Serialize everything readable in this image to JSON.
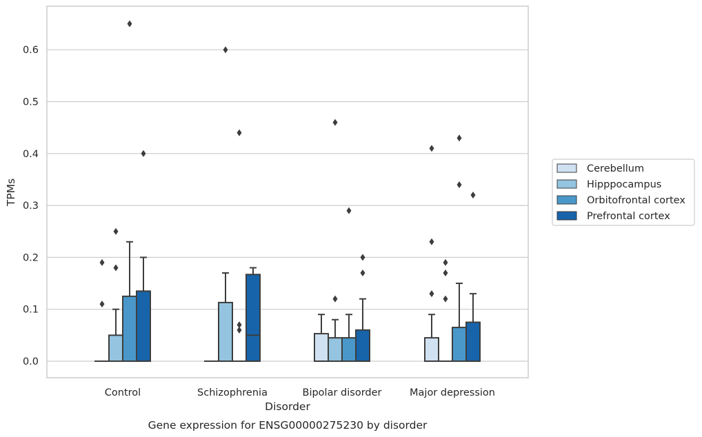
{
  "chart_data": {
    "type": "box",
    "xlabel": "Disorder",
    "ylabel": "TPMs",
    "caption": "Gene expression for ENSG00000275230 by disorder",
    "ylim": [
      -0.033,
      0.683
    ],
    "yticks": [
      "0.0",
      "0.1",
      "0.2",
      "0.3",
      "0.4",
      "0.5",
      "0.6"
    ],
    "grid": "horizontal",
    "legend_position": "right",
    "categories": [
      "Control",
      "Schizophrenia",
      "Bipolar disorder",
      "Major depression"
    ],
    "series": [
      {
        "name": "Cerebellum",
        "color": "#d0e1f2",
        "boxes": [
          {
            "q1": 0.0,
            "median": 0.0,
            "q3": 0.0,
            "whisker_low": 0.0,
            "whisker_high": 0.0,
            "outliers": [
              0.11,
              0.19
            ]
          },
          {
            "q1": 0.0,
            "median": 0.0,
            "q3": 0.0,
            "whisker_low": 0.0,
            "whisker_high": 0.0,
            "outliers": []
          },
          {
            "q1": 0.0,
            "median": 0.0,
            "q3": 0.053,
            "whisker_low": 0.0,
            "whisker_high": 0.09,
            "outliers": []
          },
          {
            "q1": 0.0,
            "median": 0.0,
            "q3": 0.045,
            "whisker_low": 0.0,
            "whisker_high": 0.09,
            "outliers": [
              0.13,
              0.23,
              0.41
            ]
          }
        ]
      },
      {
        "name": "Hipppocampus",
        "color": "#94c4df",
        "boxes": [
          {
            "q1": 0.0,
            "median": 0.0,
            "q3": 0.05,
            "whisker_low": 0.0,
            "whisker_high": 0.1,
            "outliers": [
              0.18,
              0.25
            ]
          },
          {
            "q1": 0.0,
            "median": 0.0,
            "q3": 0.113,
            "whisker_low": 0.0,
            "whisker_high": 0.17,
            "outliers": [
              0.6
            ]
          },
          {
            "q1": 0.0,
            "median": 0.0,
            "q3": 0.045,
            "whisker_low": 0.0,
            "whisker_high": 0.08,
            "outliers": [
              0.12,
              0.46
            ]
          },
          {
            "q1": 0.0,
            "median": 0.0,
            "q3": 0.0,
            "whisker_low": 0.0,
            "whisker_high": 0.0,
            "outliers": [
              0.12,
              0.17,
              0.19
            ]
          }
        ]
      },
      {
        "name": "Orbitofrontal cortex",
        "color": "#4a98c9",
        "boxes": [
          {
            "q1": 0.0,
            "median": 0.0,
            "q3": 0.125,
            "whisker_low": 0.0,
            "whisker_high": 0.23,
            "outliers": [
              0.65
            ]
          },
          {
            "q1": 0.0,
            "median": 0.0,
            "q3": 0.0,
            "whisker_low": 0.0,
            "whisker_high": 0.0,
            "outliers": [
              0.06,
              0.07,
              0.44
            ]
          },
          {
            "q1": 0.0,
            "median": 0.0,
            "q3": 0.045,
            "whisker_low": 0.0,
            "whisker_high": 0.09,
            "outliers": [
              0.29
            ]
          },
          {
            "q1": 0.0,
            "median": 0.0,
            "q3": 0.065,
            "whisker_low": 0.0,
            "whisker_high": 0.15,
            "outliers": [
              0.34,
              0.43
            ]
          }
        ]
      },
      {
        "name": "Prefrontal cortex",
        "color": "#1764ab",
        "boxes": [
          {
            "q1": 0.0,
            "median": 0.0,
            "q3": 0.135,
            "whisker_low": 0.0,
            "whisker_high": 0.2,
            "outliers": [
              0.4
            ]
          },
          {
            "q1": 0.0,
            "median": 0.05,
            "q3": 0.167,
            "whisker_low": 0.0,
            "whisker_high": 0.18,
            "outliers": []
          },
          {
            "q1": 0.0,
            "median": 0.0,
            "q3": 0.06,
            "whisker_low": 0.0,
            "whisker_high": 0.12,
            "outliers": [
              0.17,
              0.2
            ]
          },
          {
            "q1": 0.0,
            "median": 0.0,
            "q3": 0.075,
            "whisker_low": 0.0,
            "whisker_high": 0.13,
            "outliers": [
              0.32
            ]
          }
        ]
      }
    ]
  }
}
